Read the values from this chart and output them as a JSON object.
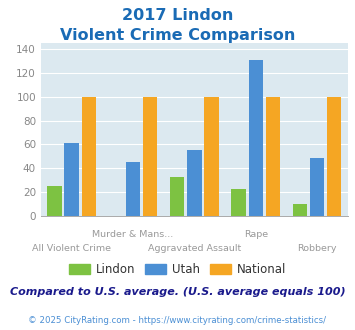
{
  "title_line1": "2017 Lindon",
  "title_line2": "Violent Crime Comparison",
  "groups": [
    {
      "label_top": "",
      "label_bottom": "All Violent Crime",
      "lindon": 25,
      "utah": 61,
      "national": 100
    },
    {
      "label_top": "Murder & Mans...",
      "label_bottom": "",
      "lindon": 0,
      "utah": 45,
      "national": 100
    },
    {
      "label_top": "",
      "label_bottom": "Aggravated Assault",
      "lindon": 33,
      "utah": 55,
      "national": 100
    },
    {
      "label_top": "Rape",
      "label_bottom": "",
      "lindon": 23,
      "utah": 131,
      "national": 100
    },
    {
      "label_top": "",
      "label_bottom": "Robbery",
      "lindon": 10,
      "utah": 49,
      "national": 100
    }
  ],
  "color_lindon": "#7dc242",
  "color_utah": "#4b8fd4",
  "color_national": "#f5a623",
  "ylim": [
    0,
    145
  ],
  "yticks": [
    0,
    20,
    40,
    60,
    80,
    100,
    120,
    140
  ],
  "background_color": "#dce9f0",
  "title_color": "#1a6bb5",
  "footer_text": "Compared to U.S. average. (U.S. average equals 100)",
  "copyright_text": "© 2025 CityRating.com - https://www.cityrating.com/crime-statistics/",
  "legend_labels": [
    "Lindon",
    "Utah",
    "National"
  ],
  "footer_color": "#1a1a8c",
  "copyright_color": "#4b8fd4"
}
